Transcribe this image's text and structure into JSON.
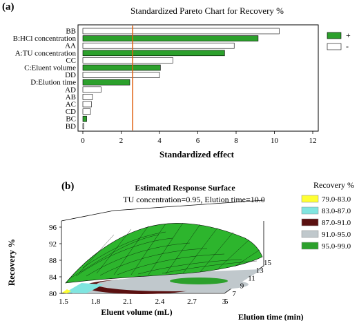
{
  "panel_a_label": "(a)",
  "panel_b_label": "(b)",
  "chart_data": [
    {
      "type": "bar",
      "orientation": "horizontal",
      "title": "Standardized Pareto Chart for Recovery %",
      "xlabel": "Standardized effect",
      "xlim": [
        0,
        12
      ],
      "xticks": [
        "0",
        "2",
        "4",
        "6",
        "8",
        "10",
        "12"
      ],
      "reference_line": 2.6,
      "legend": [
        "+",
        "-"
      ],
      "legend_colors": {
        "+": "#2ca02c",
        "-": "#ffffff"
      },
      "categories": [
        "BB",
        "B:HCl concentration",
        "AA",
        "A:TU concentration",
        "CC",
        "C:Eluent volume",
        "DD",
        "D:Elution time",
        "AD",
        "AB",
        "AC",
        "CD",
        "BC",
        "BD"
      ],
      "values": [
        10.25,
        9.15,
        7.9,
        7.4,
        4.7,
        4.05,
        4.0,
        2.45,
        0.95,
        0.5,
        0.45,
        0.4,
        0.2,
        0.05
      ],
      "signs": [
        "-",
        "+",
        "-",
        "+",
        "-",
        "+",
        "-",
        "+",
        "-",
        "-",
        "-",
        "-",
        "+",
        "-"
      ]
    },
    {
      "type": "surface",
      "title": "Estimated Response Surface",
      "subtitle": "TU concentration=0.95, Elution time=10.0",
      "xlabel": "Eluent volume (mL)",
      "ylabel": "Elution time (min)",
      "zlabel": "Recovery %",
      "xticks": [
        "1.5",
        "1.8",
        "2.1",
        "2.4",
        "2.7",
        "3"
      ],
      "yticks": [
        "5",
        "7",
        "9",
        "11",
        "13",
        "15"
      ],
      "zticks": [
        "80",
        "84",
        "88",
        "92",
        "96"
      ],
      "legend_title": "Recovery %",
      "legend": [
        {
          "label": "79.0-83.0",
          "color": "#ffff33"
        },
        {
          "label": "83.0-87.0",
          "color": "#80e5e0"
        },
        {
          "label": "87.0-91.0",
          "color": "#5a1010"
        },
        {
          "label": "91.0-95.0",
          "color": "#c0c8cc"
        },
        {
          "label": "95.0-99.0",
          "color": "#2ca02c"
        }
      ]
    }
  ]
}
